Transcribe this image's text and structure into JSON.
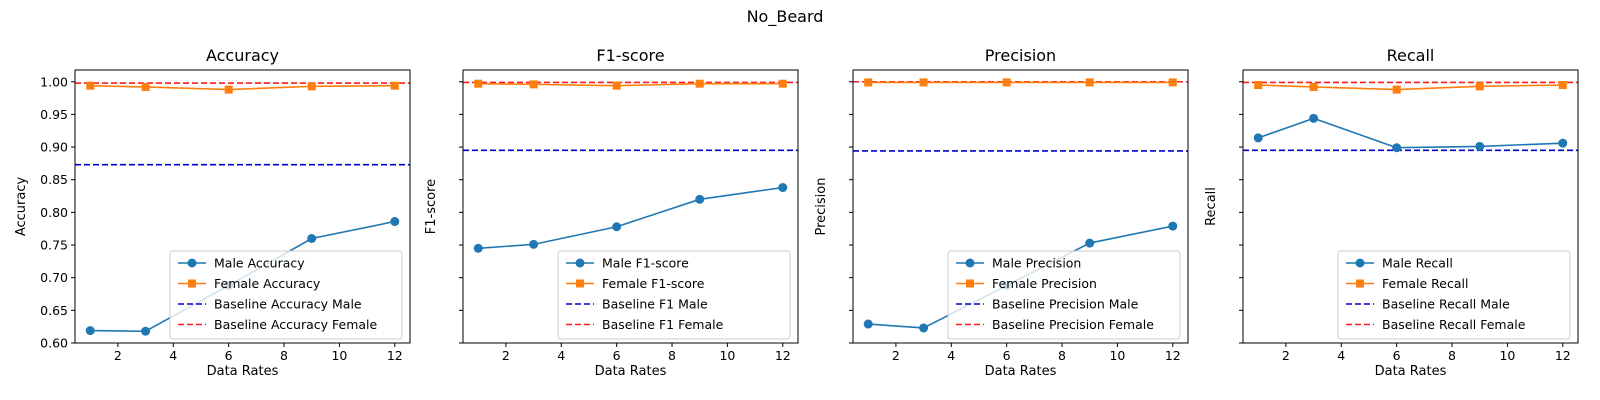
{
  "suptitle": "No_Beard",
  "colors": {
    "male": "#1f77b4",
    "female": "#ff7f0e",
    "baseline_male": "#0000cc",
    "baseline_female": "#ff1a1a"
  },
  "chart_data": [
    {
      "type": "line",
      "title": "Accuracy",
      "xlabel": "Data Rates",
      "ylabel": "Accuracy",
      "xlim": [
        0.45,
        12.55
      ],
      "ylim": [
        0.6,
        1.018
      ],
      "xticks": [
        2,
        4,
        6,
        8,
        10,
        12
      ],
      "yticks": [
        "0.60",
        "0.65",
        "0.70",
        "0.75",
        "0.80",
        "0.85",
        "0.90",
        "0.95",
        "1.00"
      ],
      "show_yticklabels": true,
      "legend_position": "lower right",
      "x": [
        1,
        3,
        6,
        9,
        12
      ],
      "series": [
        {
          "name": "Male Accuracy",
          "marker": "circle",
          "values": [
            0.619,
            0.618,
            0.688,
            0.76,
            0.786
          ]
        },
        {
          "name": "Female Accuracy",
          "marker": "square",
          "values": [
            0.994,
            0.992,
            0.988,
            0.993,
            0.994
          ]
        }
      ],
      "baselines": [
        {
          "name": "Baseline Accuracy Male",
          "value": 0.873
        },
        {
          "name": "Baseline Accuracy Female",
          "value": 0.998
        }
      ]
    },
    {
      "type": "line",
      "title": "F1-score",
      "xlabel": "Data Rates",
      "ylabel": "F1-score",
      "xlim": [
        0.45,
        12.55
      ],
      "ylim": [
        0.6,
        1.018
      ],
      "xticks": [
        2,
        4,
        6,
        8,
        10,
        12
      ],
      "yticks": [
        "0.60",
        "0.65",
        "0.70",
        "0.75",
        "0.80",
        "0.85",
        "0.90",
        "0.95",
        "1.00"
      ],
      "show_yticklabels": false,
      "legend_position": "lower right",
      "x": [
        1,
        3,
        6,
        9,
        12
      ],
      "series": [
        {
          "name": "Male F1-score",
          "marker": "circle",
          "values": [
            0.745,
            0.751,
            0.778,
            0.82,
            0.838
          ]
        },
        {
          "name": "Female F1-score",
          "marker": "square",
          "values": [
            0.997,
            0.996,
            0.994,
            0.997,
            0.997
          ]
        }
      ],
      "baselines": [
        {
          "name": "Baseline F1 Male",
          "value": 0.895
        },
        {
          "name": "Baseline F1 Female",
          "value": 0.999
        }
      ]
    },
    {
      "type": "line",
      "title": "Precision",
      "xlabel": "Data Rates",
      "ylabel": "Precision",
      "xlim": [
        0.45,
        12.55
      ],
      "ylim": [
        0.6,
        1.018
      ],
      "xticks": [
        2,
        4,
        6,
        8,
        10,
        12
      ],
      "yticks": [
        "0.60",
        "0.65",
        "0.70",
        "0.75",
        "0.80",
        "0.85",
        "0.90",
        "0.95",
        "1.00"
      ],
      "show_yticklabels": false,
      "legend_position": "lower right",
      "x": [
        1,
        3,
        6,
        9,
        12
      ],
      "series": [
        {
          "name": "Male Precision",
          "marker": "circle",
          "values": [
            0.629,
            0.623,
            0.688,
            0.753,
            0.779
          ]
        },
        {
          "name": "Female Precision",
          "marker": "square",
          "values": [
            0.999,
            0.999,
            0.999,
            0.999,
            0.999
          ]
        }
      ],
      "baselines": [
        {
          "name": "Baseline Precision Male",
          "value": 0.894
        },
        {
          "name": "Baseline Precision Female",
          "value": 1.0
        }
      ]
    },
    {
      "type": "line",
      "title": "Recall",
      "xlabel": "Data Rates",
      "ylabel": "Recall",
      "xlim": [
        0.45,
        12.55
      ],
      "ylim": [
        0.6,
        1.018
      ],
      "xticks": [
        2,
        4,
        6,
        8,
        10,
        12
      ],
      "yticks": [
        "0.60",
        "0.65",
        "0.70",
        "0.75",
        "0.80",
        "0.85",
        "0.90",
        "0.95",
        "1.00"
      ],
      "show_yticklabels": false,
      "legend_position": "lower right",
      "x": [
        1,
        3,
        6,
        9,
        12
      ],
      "series": [
        {
          "name": "Male Recall",
          "marker": "circle",
          "values": [
            0.914,
            0.944,
            0.899,
            0.901,
            0.906
          ]
        },
        {
          "name": "Female Recall",
          "marker": "square",
          "values": [
            0.995,
            0.992,
            0.988,
            0.993,
            0.995
          ]
        }
      ],
      "baselines": [
        {
          "name": "Baseline Recall Male",
          "value": 0.895
        },
        {
          "name": "Baseline Recall Female",
          "value": 0.999
        }
      ]
    }
  ]
}
